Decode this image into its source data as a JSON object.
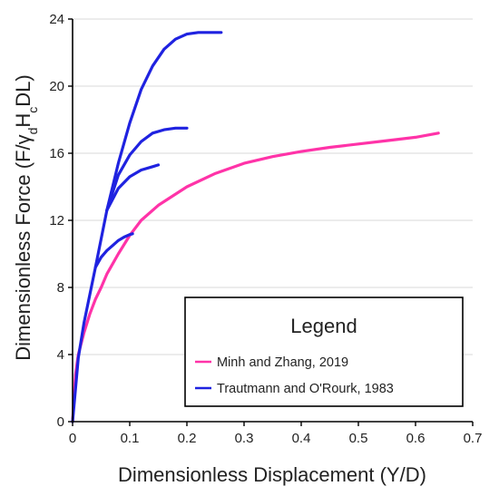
{
  "chart_data": {
    "type": "line",
    "xlabel": "Dimensionless Displacement (Y/D)",
    "ylabel_parts": [
      "Dimensionless Force (F/",
      "γ",
      "d",
      "H",
      "c",
      "DL)"
    ],
    "xlim": [
      0,
      0.7
    ],
    "ylim": [
      0,
      24
    ],
    "x_ticks": [
      0,
      0.1,
      0.2,
      0.3,
      0.4,
      0.5,
      0.6,
      0.7
    ],
    "x_tick_labels": [
      "0",
      "0.1",
      "0.2",
      "0.3",
      "0.4",
      "0.5",
      "0.6",
      "0.7"
    ],
    "y_ticks": [
      0,
      4,
      8,
      12,
      16,
      20,
      24
    ],
    "y_tick_labels": [
      "0",
      "4",
      "8",
      "12",
      "16",
      "20",
      "24"
    ],
    "grid": "horizontal",
    "legend": {
      "title": "Legend",
      "placement": "bottom-right",
      "entries": [
        {
          "label": "Minh and Zhang, 2019",
          "color": "#ff33a8"
        },
        {
          "label": "Trautmann and O'Rourk, 1983",
          "color": "#1f22e0"
        }
      ]
    },
    "series": [
      {
        "name": "Minh and Zhang, 2019",
        "color": "#ff33a8",
        "x": [
          0,
          0.005,
          0.01,
          0.02,
          0.03,
          0.04,
          0.05,
          0.06,
          0.08,
          0.1,
          0.12,
          0.15,
          0.2,
          0.25,
          0.3,
          0.35,
          0.4,
          0.45,
          0.5,
          0.55,
          0.6,
          0.64
        ],
        "y": [
          0,
          2.8,
          4.0,
          5.3,
          6.4,
          7.3,
          8.0,
          8.8,
          10.0,
          11.1,
          12.0,
          12.9,
          14.0,
          14.8,
          15.4,
          15.8,
          16.1,
          16.35,
          16.55,
          16.75,
          16.95,
          17.2
        ]
      },
      {
        "name": "Trautmann and O'Rourk, 1983",
        "color": "#1f22e0",
        "x": [
          0,
          0.01,
          0.02,
          0.04,
          0.06,
          0.08,
          0.1,
          0.12,
          0.14,
          0.16,
          0.18,
          0.2,
          0.22,
          0.24,
          0.26
        ],
        "y": [
          0,
          3.8,
          5.9,
          9.2,
          12.6,
          15.4,
          17.8,
          19.8,
          21.2,
          22.2,
          22.8,
          23.1,
          23.2,
          23.2,
          23.2
        ]
      },
      {
        "name": "",
        "color": "#1f22e0",
        "x": [
          0.06,
          0.08,
          0.1,
          0.12,
          0.14,
          0.16,
          0.18,
          0.2
        ],
        "y": [
          12.6,
          14.7,
          15.9,
          16.7,
          17.2,
          17.4,
          17.5,
          17.5
        ]
      },
      {
        "name": "",
        "color": "#1f22e0",
        "x": [
          0.06,
          0.08,
          0.1,
          0.12,
          0.14,
          0.15
        ],
        "y": [
          12.6,
          13.9,
          14.6,
          15.0,
          15.2,
          15.3
        ]
      },
      {
        "name": "",
        "color": "#1f22e0",
        "x": [
          0.04,
          0.05,
          0.06,
          0.07,
          0.08,
          0.09,
          0.1,
          0.105
        ],
        "y": [
          9.2,
          9.8,
          10.2,
          10.5,
          10.8,
          11.0,
          11.15,
          11.2
        ]
      }
    ]
  }
}
